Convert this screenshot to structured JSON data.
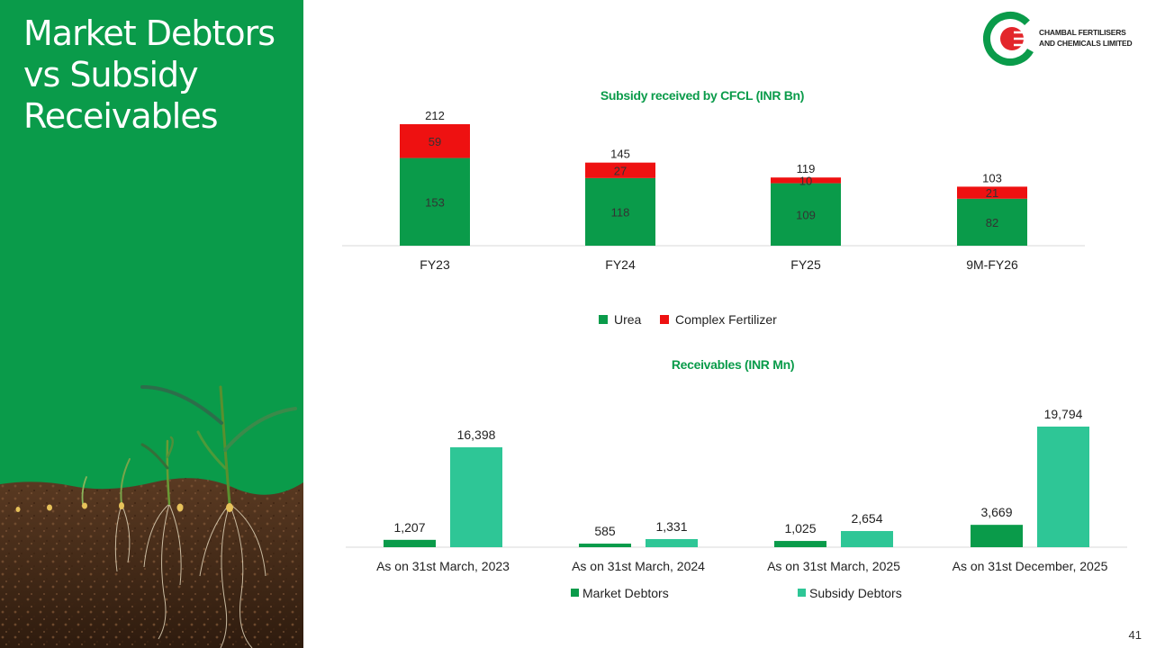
{
  "slide": {
    "title_lines": [
      "Market Debtors",
      "vs Subsidy",
      "Receivables"
    ],
    "page_number": "41"
  },
  "logo": {
    "line1": "CHAMBAL FERTILISERS",
    "line2": "AND CHEMICALS LIMITED",
    "color_green": "#0a9b4a",
    "color_red": "#e3262b"
  },
  "colors": {
    "urea": "#0a9b4a",
    "complex": "#ee1111",
    "market": "#0a9b4a",
    "subsidy": "#2ec696"
  },
  "chart_data": [
    {
      "type": "bar",
      "stacked": true,
      "title": "Subsidy received by CFCL (INR Bn)",
      "categories": [
        "FY23",
        "FY24",
        "FY25",
        "9M-FY26"
      ],
      "series": [
        {
          "name": "Urea",
          "values": [
            153,
            118,
            109,
            82
          ]
        },
        {
          "name": "Complex Fertilizer",
          "values": [
            59,
            27,
            10,
            21
          ]
        }
      ],
      "totals": [
        "212",
        "145",
        "119",
        "103"
      ],
      "labels": [
        [
          "153",
          "118",
          "109",
          "82"
        ],
        [
          "59",
          "27",
          "10",
          "21"
        ]
      ],
      "ylim": [
        0,
        212
      ],
      "legend": "bottom"
    },
    {
      "type": "bar",
      "title": "Receivables (INR Mn)",
      "categories": [
        "As on 31st March, 2023",
        "As on 31st March, 2024",
        "As on 31st March, 2025",
        "As on 31st December, 2025"
      ],
      "series": [
        {
          "name": "Market Debtors",
          "values": [
            1207,
            585,
            1025,
            3669
          ],
          "labels": [
            "1,207",
            "585",
            "1,025",
            "3,669"
          ]
        },
        {
          "name": "Subsidy Debtors",
          "values": [
            16398,
            1331,
            2654,
            19794
          ],
          "labels": [
            "16,398",
            "1,331",
            "2,654",
            "19,794"
          ]
        }
      ],
      "ylim": [
        0,
        19794
      ],
      "legend": "bottom"
    }
  ]
}
